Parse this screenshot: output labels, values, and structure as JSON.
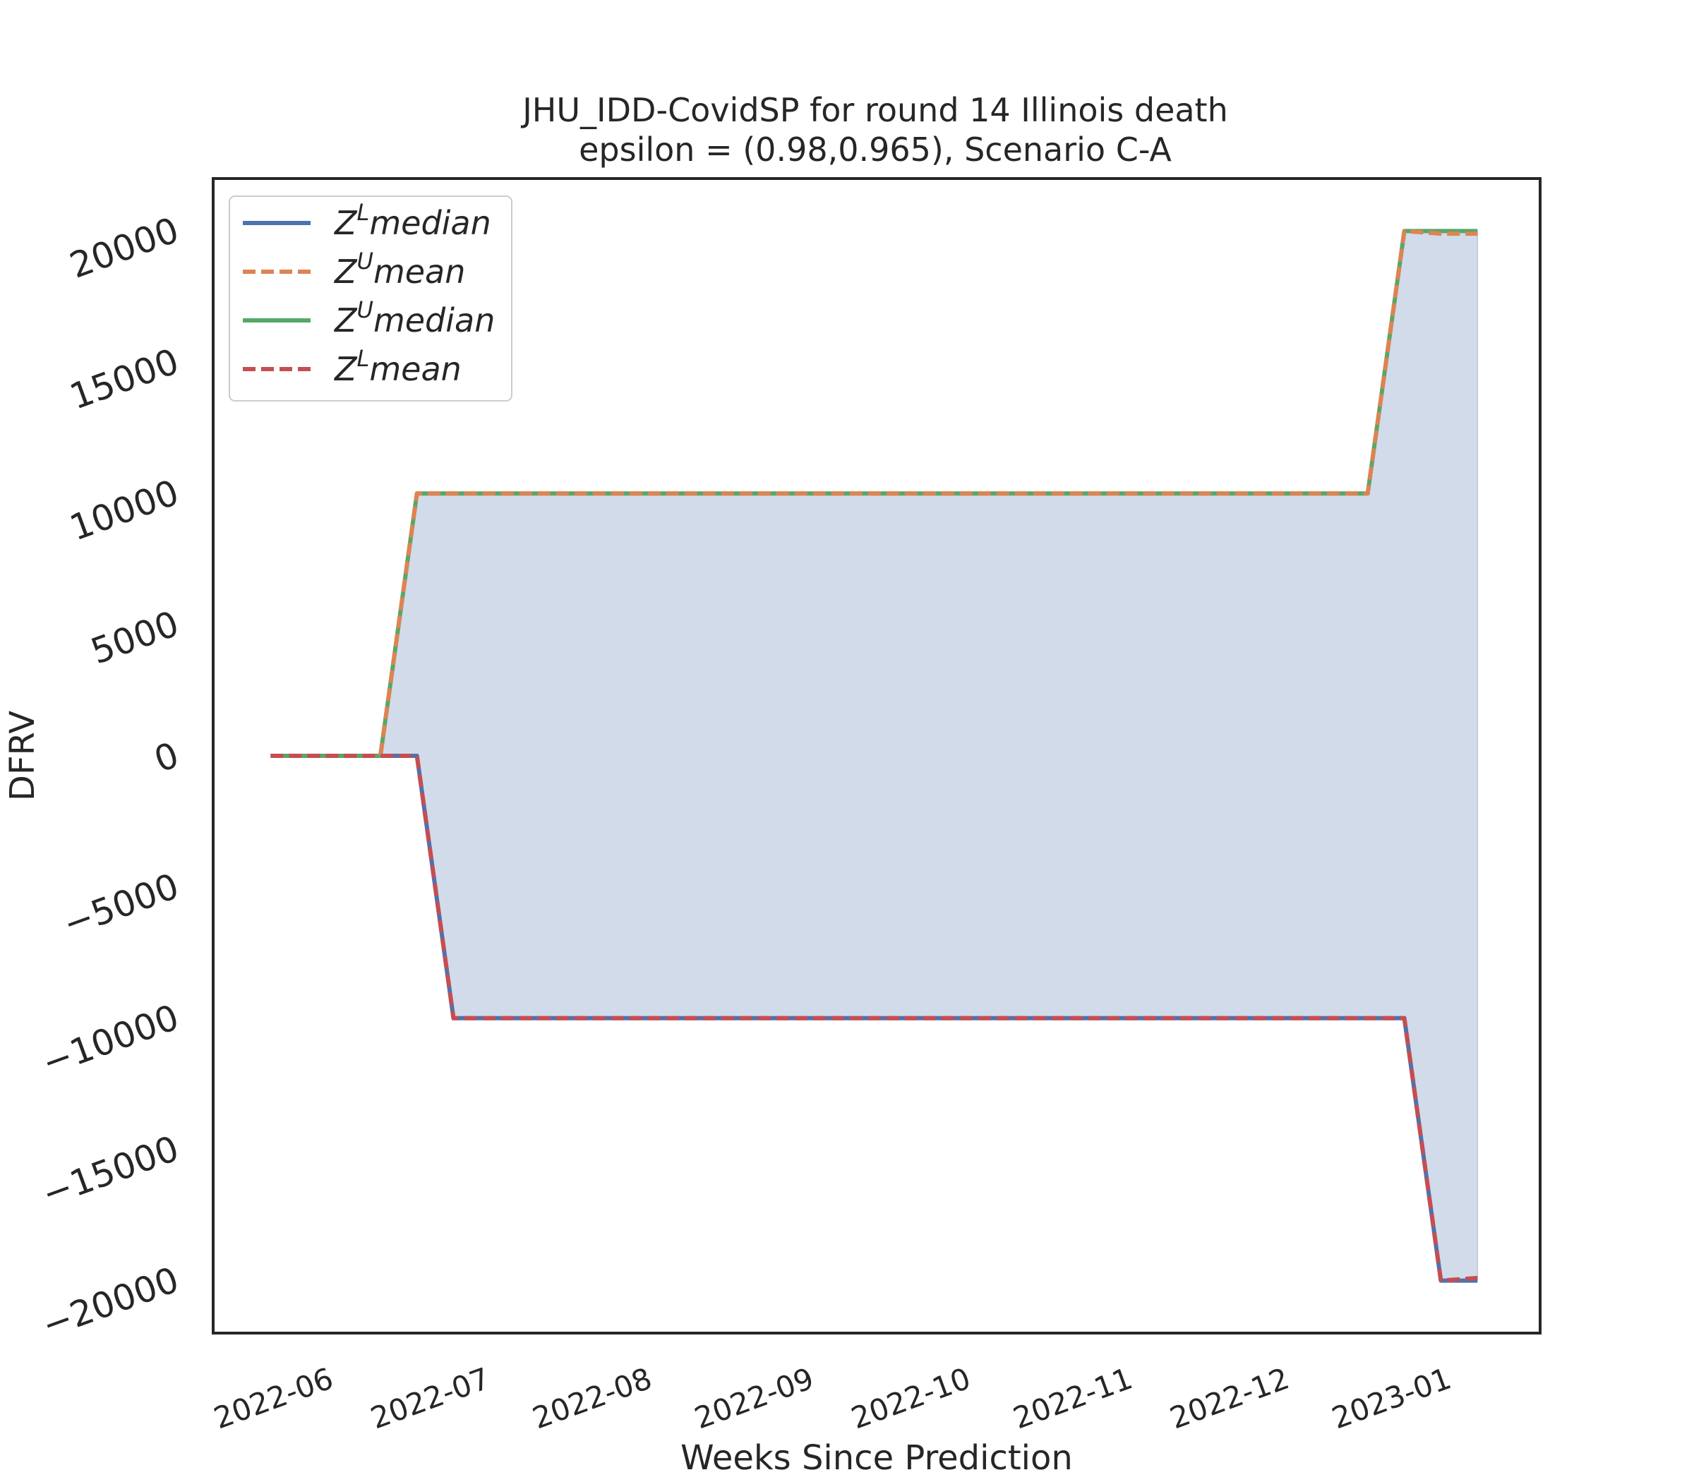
{
  "chart_data": {
    "type": "line",
    "title": "JHU_IDD-CovidSP for round 14 Illinois  death",
    "subtitle": "epsilon = (0.98,0.965), Scenario C-A",
    "xlabel": "Weeks Since Prediction",
    "ylabel": "DFRV",
    "xlim": [
      "2022-05-10",
      "2023-01-19"
    ],
    "ylim": [
      -22000,
      22000
    ],
    "x_ticks": [
      "2022-06-01",
      "2022-07-01",
      "2022-08-01",
      "2022-09-01",
      "2022-10-01",
      "2022-11-01",
      "2022-12-01",
      "2023-01-01"
    ],
    "x_tick_labels": [
      "2022-06",
      "2022-07",
      "2022-08",
      "2022-09",
      "2022-10",
      "2022-11",
      "2022-12",
      "2023-01"
    ],
    "y_ticks": [
      -20000,
      -15000,
      -10000,
      -5000,
      0,
      5000,
      10000,
      15000,
      20000
    ],
    "y_tick_labels": [
      "−20000",
      "−15000",
      "−10000",
      "−5000",
      "0",
      "5000",
      "10000",
      "15000",
      "20000"
    ],
    "grid": false,
    "legend_position": "top-left",
    "fill": {
      "between": [
        "Z^L median",
        "Z^U median"
      ],
      "color": "#d2dbea"
    },
    "series": [
      {
        "name": "Z^L median",
        "legend_base": "Z",
        "legend_sup": "L",
        "legend_rest": "median",
        "color": "#4c72b0",
        "dash": false,
        "x": [
          "2022-05-21",
          "2022-05-28",
          "2022-06-04",
          "2022-06-11",
          "2022-06-18",
          "2022-06-25",
          "2022-07-02",
          "2022-07-09",
          "2022-07-16",
          "2022-07-23",
          "2022-07-30",
          "2022-08-06",
          "2022-08-13",
          "2022-08-20",
          "2022-08-27",
          "2022-09-03",
          "2022-09-10",
          "2022-09-17",
          "2022-09-24",
          "2022-10-01",
          "2022-10-08",
          "2022-10-15",
          "2022-10-22",
          "2022-10-29",
          "2022-11-05",
          "2022-11-12",
          "2022-11-19",
          "2022-11-26",
          "2022-12-03",
          "2022-12-10",
          "2022-12-17",
          "2022-12-24",
          "2022-12-31",
          "2023-01-07"
        ],
        "y": [
          0,
          0,
          0,
          0,
          0,
          -10000,
          -10000,
          -10000,
          -10000,
          -10000,
          -10000,
          -10000,
          -10000,
          -10000,
          -10000,
          -10000,
          -10000,
          -10000,
          -10000,
          -10000,
          -10000,
          -10000,
          -10000,
          -10000,
          -10000,
          -10000,
          -10000,
          -10000,
          -10000,
          -10000,
          -10000,
          -10000,
          -20000,
          -20000
        ]
      },
      {
        "name": "Z^U mean",
        "legend_base": "Z",
        "legend_sup": "U",
        "legend_rest": "mean",
        "color": "#dd8452",
        "dash": true,
        "x": [
          "2022-05-21",
          "2022-05-28",
          "2022-06-04",
          "2022-06-11",
          "2022-06-18",
          "2022-06-25",
          "2022-07-02",
          "2022-07-09",
          "2022-07-16",
          "2022-07-23",
          "2022-07-30",
          "2022-08-06",
          "2022-08-13",
          "2022-08-20",
          "2022-08-27",
          "2022-09-03",
          "2022-09-10",
          "2022-09-17",
          "2022-09-24",
          "2022-10-01",
          "2022-10-08",
          "2022-10-15",
          "2022-10-22",
          "2022-10-29",
          "2022-11-05",
          "2022-11-12",
          "2022-11-19",
          "2022-11-26",
          "2022-12-03",
          "2022-12-10",
          "2022-12-17",
          "2022-12-24",
          "2022-12-31",
          "2023-01-07"
        ],
        "y": [
          0,
          0,
          0,
          0,
          10000,
          10000,
          10000,
          10000,
          10000,
          10000,
          10000,
          10000,
          10000,
          10000,
          10000,
          10000,
          10000,
          10000,
          10000,
          10000,
          10000,
          10000,
          10000,
          10000,
          10000,
          10000,
          10000,
          10000,
          10000,
          10000,
          10000,
          20000,
          19900,
          19900
        ]
      },
      {
        "name": "Z^U median",
        "legend_base": "Z",
        "legend_sup": "U",
        "legend_rest": "median",
        "color": "#55a868",
        "dash": false,
        "x": [
          "2022-05-21",
          "2022-05-28",
          "2022-06-04",
          "2022-06-11",
          "2022-06-18",
          "2022-06-25",
          "2022-07-02",
          "2022-07-09",
          "2022-07-16",
          "2022-07-23",
          "2022-07-30",
          "2022-08-06",
          "2022-08-13",
          "2022-08-20",
          "2022-08-27",
          "2022-09-03",
          "2022-09-10",
          "2022-09-17",
          "2022-09-24",
          "2022-10-01",
          "2022-10-08",
          "2022-10-15",
          "2022-10-22",
          "2022-10-29",
          "2022-11-05",
          "2022-11-12",
          "2022-11-19",
          "2022-11-26",
          "2022-12-03",
          "2022-12-10",
          "2022-12-17",
          "2022-12-24",
          "2022-12-31",
          "2023-01-07"
        ],
        "y": [
          0,
          0,
          0,
          0,
          10000,
          10000,
          10000,
          10000,
          10000,
          10000,
          10000,
          10000,
          10000,
          10000,
          10000,
          10000,
          10000,
          10000,
          10000,
          10000,
          10000,
          10000,
          10000,
          10000,
          10000,
          10000,
          10000,
          10000,
          10000,
          10000,
          10000,
          20000,
          20000,
          20000
        ]
      },
      {
        "name": "Z^L mean",
        "legend_base": "Z",
        "legend_sup": "L",
        "legend_rest": "mean",
        "color": "#c44e52",
        "dash": true,
        "x": [
          "2022-05-21",
          "2022-05-28",
          "2022-06-04",
          "2022-06-11",
          "2022-06-18",
          "2022-06-25",
          "2022-07-02",
          "2022-07-09",
          "2022-07-16",
          "2022-07-23",
          "2022-07-30",
          "2022-08-06",
          "2022-08-13",
          "2022-08-20",
          "2022-08-27",
          "2022-09-03",
          "2022-09-10",
          "2022-09-17",
          "2022-09-24",
          "2022-10-01",
          "2022-10-08",
          "2022-10-15",
          "2022-10-22",
          "2022-10-29",
          "2022-11-05",
          "2022-11-12",
          "2022-11-19",
          "2022-11-26",
          "2022-12-03",
          "2022-12-10",
          "2022-12-17",
          "2022-12-24",
          "2022-12-31",
          "2023-01-07"
        ],
        "y": [
          0,
          0,
          0,
          0,
          0,
          -10000,
          -10000,
          -10000,
          -10000,
          -10000,
          -10000,
          -10000,
          -10000,
          -10000,
          -10000,
          -10000,
          -10000,
          -10000,
          -10000,
          -10000,
          -10000,
          -10000,
          -10000,
          -10000,
          -10000,
          -10000,
          -10000,
          -10000,
          -10000,
          -10000,
          -10000,
          -10000,
          -20000,
          -19900
        ]
      }
    ]
  }
}
